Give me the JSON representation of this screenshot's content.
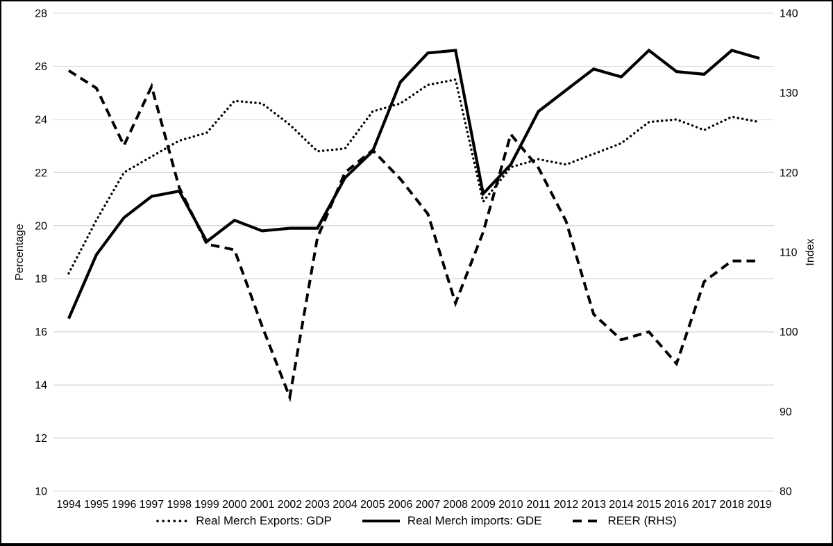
{
  "chart_data": {
    "type": "line",
    "title": "",
    "categories": [
      "1994",
      "1995",
      "1996",
      "1997",
      "1998",
      "1999",
      "2000",
      "2001",
      "2002",
      "2003",
      "2004",
      "2005",
      "2006",
      "2007",
      "2008",
      "2009",
      "2010",
      "2011",
      "2012",
      "2013",
      "2014",
      "2015",
      "2016",
      "2017",
      "2018",
      "2019"
    ],
    "series": [
      {
        "name": "Real Merch Exports: GDP",
        "axis": "left",
        "line_style": "dotted",
        "color": "#000000",
        "values": [
          18.2,
          20.2,
          22.0,
          22.6,
          23.2,
          23.5,
          24.7,
          24.6,
          23.8,
          22.8,
          22.9,
          24.3,
          24.6,
          25.3,
          25.5,
          20.9,
          22.2,
          22.5,
          22.3,
          22.7,
          23.1,
          23.9,
          24.0,
          23.6,
          24.1,
          23.9
        ]
      },
      {
        "name": "Real Merch imports: GDE",
        "axis": "left",
        "line_style": "solid",
        "color": "#000000",
        "values": [
          16.5,
          18.9,
          20.3,
          21.1,
          21.3,
          19.4,
          20.2,
          19.8,
          19.9,
          19.9,
          21.8,
          22.8,
          25.4,
          26.5,
          26.6,
          21.2,
          22.3,
          24.3,
          25.1,
          25.9,
          25.6,
          26.6,
          25.8,
          25.7,
          26.6,
          26.3
        ]
      },
      {
        "name": "REER (RHS)",
        "axis": "right",
        "line_style": "dashed",
        "color": "#000000",
        "values": [
          132.8,
          130.6,
          123.4,
          130.8,
          118.1,
          111.0,
          110.3,
          100.7,
          91.8,
          111.8,
          120.0,
          122.8,
          119.2,
          114.8,
          103.6,
          112.5,
          124.8,
          120.6,
          113.9,
          102.2,
          99.0,
          100.0,
          96.0,
          106.3,
          108.9,
          108.9
        ]
      }
    ],
    "left_axis": {
      "label": "Percentage",
      "min": 10,
      "max": 28,
      "step": 2,
      "ticks": [
        28,
        26,
        24,
        22,
        20,
        18,
        16,
        14,
        12,
        10
      ]
    },
    "right_axis": {
      "label": "Index",
      "min": 80,
      "max": 140,
      "step": 10,
      "ticks": [
        140,
        130,
        120,
        110,
        100,
        90,
        80
      ]
    },
    "grid": "horizontal",
    "legend_position": "bottom",
    "colors": {
      "line": "#000000",
      "grid": "#d9d9d9",
      "background": "#ffffff",
      "frame": "#000000"
    }
  }
}
